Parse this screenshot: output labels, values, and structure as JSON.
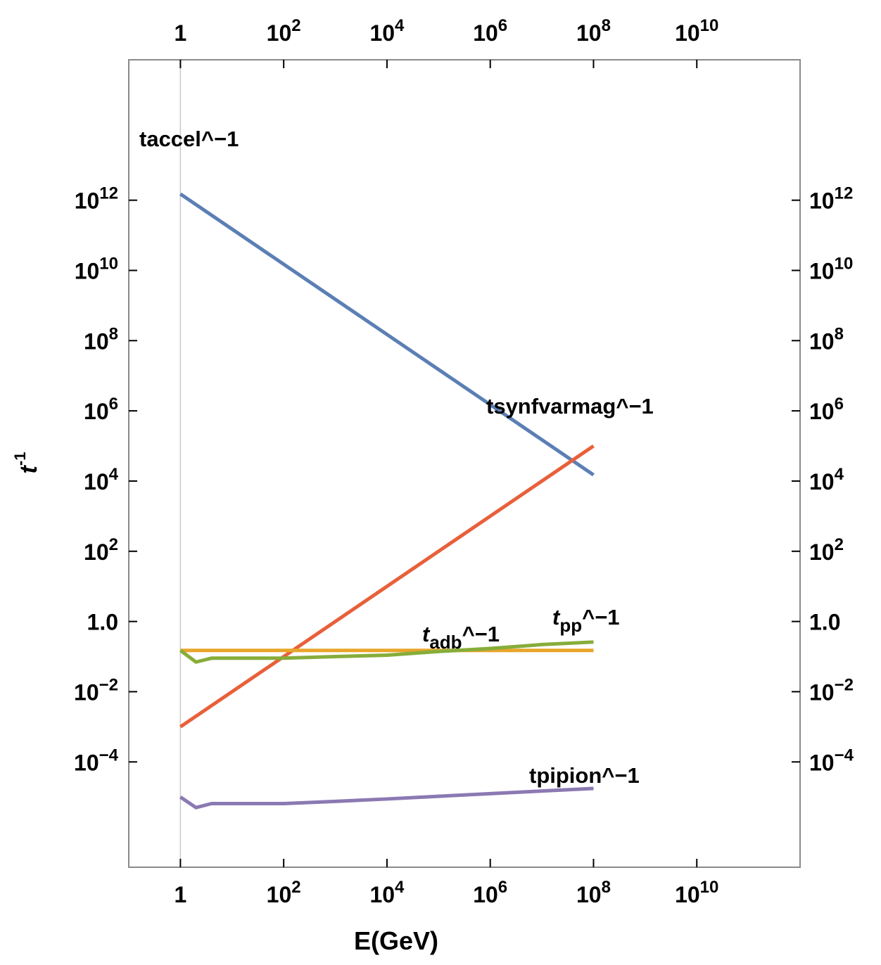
{
  "chart_data": {
    "type": "line",
    "x_scale": "log",
    "y_scale": "log",
    "xlim": [
      0.1,
      1000000000000
    ],
    "ylim": [
      1e-07,
      10000000000000000
    ],
    "xlabel": "E(GeV)",
    "ylabel": "t",
    "ylabel_sup": "-1",
    "x_ticks": [
      {
        "value": 1,
        "mant": "1",
        "exp": ""
      },
      {
        "value": 100,
        "mant": "10",
        "exp": "2"
      },
      {
        "value": 10000,
        "mant": "10",
        "exp": "4"
      },
      {
        "value": 1000000,
        "mant": "10",
        "exp": "6"
      },
      {
        "value": 100000000,
        "mant": "10",
        "exp": "8"
      },
      {
        "value": 10000000000,
        "mant": "10",
        "exp": "10"
      }
    ],
    "y_ticks": [
      {
        "value": 1000000000000,
        "mant": "10",
        "exp": "12"
      },
      {
        "value": 10000000000,
        "mant": "10",
        "exp": "10"
      },
      {
        "value": 100000000,
        "mant": "10",
        "exp": "8"
      },
      {
        "value": 1000000,
        "mant": "10",
        "exp": "6"
      },
      {
        "value": 10000,
        "mant": "10",
        "exp": "4"
      },
      {
        "value": 100,
        "mant": "10",
        "exp": "2"
      },
      {
        "value": 1,
        "mant": "1.0",
        "exp": ""
      },
      {
        "value": 0.01,
        "mant": "10",
        "exp": "−2"
      },
      {
        "value": 0.0001,
        "mant": "10",
        "exp": "−4"
      }
    ],
    "series": [
      {
        "color": "#5b7fb5",
        "label_parts": [
          {
            "text": "taccel^−1"
          }
        ],
        "x": [
          1,
          100000000
        ],
        "y": [
          1500000000000,
          15000
        ]
      },
      {
        "color": "#e8603a",
        "label_parts": [
          {
            "text": "tsynfvarmag^−1"
          }
        ],
        "x": [
          1,
          100000000
        ],
        "y": [
          0.001,
          100000
        ]
      },
      {
        "color": "#e9a52a",
        "label_parts": [
          {
            "text": "t",
            "italic": true
          },
          {
            "text": "adb",
            "sub": true
          },
          {
            "text": "^−1"
          }
        ],
        "x": [
          1,
          100000000
        ],
        "y": [
          0.15,
          0.15
        ]
      },
      {
        "color": "#86ad3a",
        "label_parts": [
          {
            "text": "t",
            "italic": true
          },
          {
            "text": "pp",
            "sub": true
          },
          {
            "text": "^−1"
          }
        ],
        "x": [
          1,
          2,
          4,
          10,
          100,
          1000,
          10000,
          100000,
          1000000,
          10000000,
          100000000
        ],
        "y": [
          0.15,
          0.07,
          0.09,
          0.09,
          0.09,
          0.1,
          0.11,
          0.14,
          0.17,
          0.22,
          0.26
        ]
      },
      {
        "color": "#8b79b3",
        "label_parts": [
          {
            "text": "tpipion^−1"
          }
        ],
        "x": [
          1,
          2,
          4,
          10,
          100,
          1000,
          10000,
          100000,
          1000000,
          10000000,
          100000000
        ],
        "y": [
          1e-05,
          5e-06,
          6.5e-06,
          6.5e-06,
          6.5e-06,
          7.5e-06,
          8.8e-06,
          1.05e-05,
          1.25e-05,
          1.48e-05,
          1.75e-05
        ]
      }
    ]
  }
}
